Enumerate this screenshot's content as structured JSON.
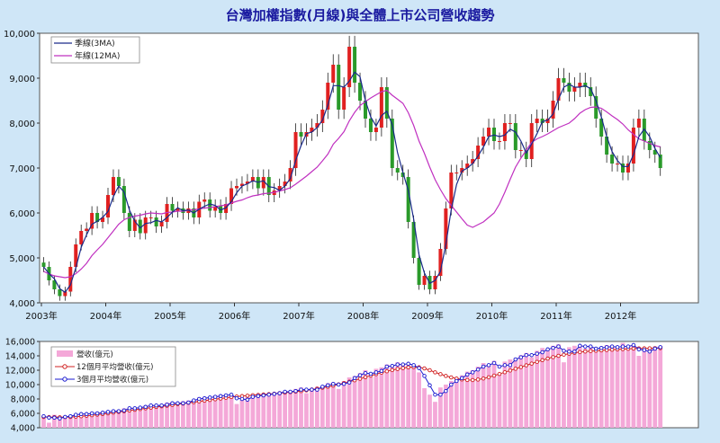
{
  "chart_data": [
    {
      "type": "candlestick",
      "title": "台灣加權指數(月線)與全體上市公司營收趨勢",
      "ylim": [
        4000,
        10000
      ],
      "yticks": [
        "4,000",
        "5,000",
        "6,000",
        "7,000",
        "8,000",
        "9,000",
        "10,000"
      ],
      "ytick_values": [
        4000,
        5000,
        6000,
        7000,
        8000,
        9000,
        10000
      ],
      "x_start": "2003-01",
      "x_labels": [
        "2003年",
        "2004年",
        "2005年",
        "2006年",
        "2007年",
        "2008年",
        "2009年",
        "2010年",
        "2011年",
        "2012年"
      ],
      "grid": false,
      "legend_position": "top-left",
      "up_color": "#e02020",
      "down_color": "#2a9a2a",
      "series": [
        {
          "name": "季線(3MA)",
          "color": "#1a2a8a"
        },
        {
          "name": "年線(12MA)",
          "color": "#c030c0"
        }
      ],
      "monthly_close": [
        4800,
        4500,
        4300,
        4150,
        4250,
        4800,
        5300,
        5600,
        5650,
        6000,
        5800,
        5900,
        6400,
        6800,
        6600,
        6000,
        5600,
        5850,
        5550,
        5900,
        5900,
        5700,
        5800,
        6200,
        6050,
        6100,
        6000,
        6100,
        5900,
        6250,
        6300,
        6050,
        6150,
        6000,
        6200,
        6550,
        6600,
        6650,
        6700,
        6800,
        6550,
        6800,
        6400,
        6500,
        6600,
        6700,
        7000,
        7800,
        7700,
        7800,
        7900,
        8000,
        8300,
        8900,
        9300,
        8300,
        8800,
        9700,
        8900,
        8500,
        8100,
        7800,
        7900,
        8800,
        8100,
        7000,
        6900,
        6800,
        5800,
        5000,
        4400,
        4600,
        4300,
        4600,
        5200,
        6100,
        6900,
        6900,
        7000,
        7100,
        7200,
        7500,
        7700,
        7900,
        7600,
        7600,
        8000,
        8000,
        7400,
        7400,
        7200,
        8000,
        8100,
        8000,
        8100,
        8500,
        9000,
        8900,
        8700,
        8800,
        8900,
        8800,
        8600,
        8100,
        7700,
        7300,
        7100,
        7100,
        6900,
        7100,
        7900,
        8100,
        7600,
        7400,
        7300,
        7000
      ],
      "annual_ma": [
        4700,
        4640,
        4600,
        4580,
        4560,
        4580,
        4650,
        4750,
        4880,
        5050,
        5180,
        5300,
        5450,
        5600,
        5750,
        5850,
        5900,
        5930,
        5950,
        5980,
        6000,
        5990,
        5980,
        6010,
        6020,
        6040,
        6040,
        6060,
        6070,
        6090,
        6110,
        6120,
        6140,
        6160,
        6180,
        6220,
        6260,
        6290,
        6340,
        6380,
        6400,
        6430,
        6440,
        6460,
        6490,
        6520,
        6560,
        6640,
        6730,
        6820,
        6920,
        7020,
        7160,
        7310,
        7530,
        7660,
        7810,
        8050,
        8240,
        8390,
        8480,
        8560,
        8630,
        8700,
        8730,
        8620,
        8530,
        8440,
        8230,
        7950,
        7600,
        7330,
        7020,
        6740,
        6520,
        6320,
        6170,
        6020,
        5870,
        5730,
        5680,
        5740,
        5800,
        5900,
        6000,
        6200,
        6460,
        6750,
        7020,
        7220,
        7400,
        7570,
        7650,
        7700,
        7760,
        7830,
        7900,
        7950,
        8000,
        8100,
        8220,
        8300,
        8350,
        8360,
        8330,
        8250,
        8160,
        8080,
        7980,
        7850,
        7750,
        7650,
        7600,
        7550,
        7500,
        7470
      ]
    },
    {
      "type": "bar",
      "ylim": [
        4000,
        16000
      ],
      "yticks": [
        "4,000",
        "6,000",
        "8,000",
        "10,000",
        "12,000",
        "14,000",
        "16,000"
      ],
      "ytick_values": [
        4000,
        6000,
        8000,
        10000,
        12000,
        14000,
        16000
      ],
      "legend_position": "top-left",
      "series": [
        {
          "name": "營收(億元)",
          "color": "#f4a8d8"
        },
        {
          "name": "12個月平均營收(億元)",
          "color": "#d02020"
        },
        {
          "name": "3個月平均營收(億元)",
          "color": "#1a1ad0"
        }
      ],
      "revenue": [
        5600,
        4700,
        5800,
        5300,
        5400,
        5700,
        5800,
        5900,
        6000,
        5800,
        6100,
        6200,
        6300,
        6000,
        6500,
        6700,
        6800,
        6600,
        6900,
        7100,
        7200,
        7000,
        7200,
        7500,
        7600,
        7000,
        7700,
        7800,
        7900,
        8200,
        8300,
        8100,
        8500,
        8600,
        8400,
        8700,
        7300,
        8100,
        8300,
        8400,
        8500,
        8700,
        8600,
        8900,
        9000,
        9100,
        8900,
        9400,
        9600,
        8800,
        9500,
        9700,
        9800,
        10200,
        10300,
        9400,
        10500,
        11000,
        11200,
        11600,
        12000,
        11000,
        12200,
        12400,
        12800,
        12500,
        13100,
        12800,
        12700,
        12500,
        11700,
        9500,
        8600,
        7600,
        9600,
        10000,
        10500,
        11000,
        11300,
        11800,
        12000,
        12500,
        13000,
        12700,
        13300,
        11500,
        13200,
        13500,
        13700,
        14100,
        14400,
        13800,
        14700,
        15100,
        14900,
        15400,
        15600,
        13100,
        15200,
        15400,
        15500,
        15000,
        15300,
        14800,
        15200,
        15500,
        15300,
        14900,
        15800,
        15100,
        15500,
        14000,
        14800,
        15000,
        15300,
        15400
      ],
      "ma12": [
        5500,
        5480,
        5470,
        5460,
        5480,
        5500,
        5540,
        5600,
        5670,
        5740,
        5820,
        5900,
        6000,
        6100,
        6200,
        6300,
        6400,
        6500,
        6600,
        6700,
        6800,
        6890,
        6980,
        7060,
        7160,
        7260,
        7360,
        7460,
        7560,
        7660,
        7760,
        7860,
        7960,
        8060,
        8160,
        8260,
        8340,
        8400,
        8460,
        8520,
        8570,
        8620,
        8670,
        8740,
        8810,
        8880,
        8950,
        9020,
        9100,
        9200,
        9310,
        9430,
        9560,
        9700,
        9860,
        10030,
        10210,
        10400,
        10600,
        10810,
        11030,
        11250,
        11460,
        11660,
        11850,
        12020,
        12170,
        12300,
        12400,
        12430,
        12400,
        12250,
        12000,
        11700,
        11450,
        11200,
        11000,
        10840,
        10720,
        10640,
        10630,
        10700,
        10850,
        11020,
        11250,
        11480,
        11720,
        11960,
        12200,
        12440,
        12680,
        12920,
        13160,
        13400,
        13620,
        13820,
        14000,
        14160,
        14300,
        14420,
        14520,
        14600,
        14660,
        14710,
        14760,
        14810,
        14860,
        14900,
        14940,
        14980,
        15010,
        15030,
        15040,
        15050,
        15060,
        15070
      ],
      "ma3": [
        5600,
        5400,
        5400,
        5300,
        5500,
        5600,
        5800,
        5900,
        5900,
        6000,
        6000,
        6100,
        6200,
        6300,
        6300,
        6400,
        6700,
        6700,
        6800,
        6900,
        7100,
        7100,
        7100,
        7200,
        7400,
        7400,
        7400,
        7500,
        7800,
        8000,
        8100,
        8200,
        8300,
        8400,
        8500,
        8600,
        8100,
        8000,
        7900,
        8300,
        8400,
        8500,
        8600,
        8700,
        8800,
        9000,
        9000,
        9100,
        9300,
        9300,
        9300,
        9300,
        9700,
        9900,
        10100,
        10000,
        10100,
        10300,
        10900,
        11300,
        11600,
        11500,
        11700,
        11900,
        12500,
        12600,
        12800,
        12800,
        12900,
        12700,
        12300,
        11200,
        9900,
        8600,
        8600,
        9100,
        10000,
        10500,
        10900,
        11400,
        11700,
        12100,
        12500,
        12700,
        13000,
        12500,
        12700,
        12700,
        13500,
        13800,
        14100,
        14100,
        14300,
        14500,
        14900,
        15100,
        15300,
        14700,
        14600,
        14600,
        15400,
        15300,
        15300,
        15000,
        15100,
        15200,
        15300,
        15200,
        15300,
        15300,
        15500,
        14900,
        14800,
        14600,
        15000,
        15200
      ]
    }
  ]
}
